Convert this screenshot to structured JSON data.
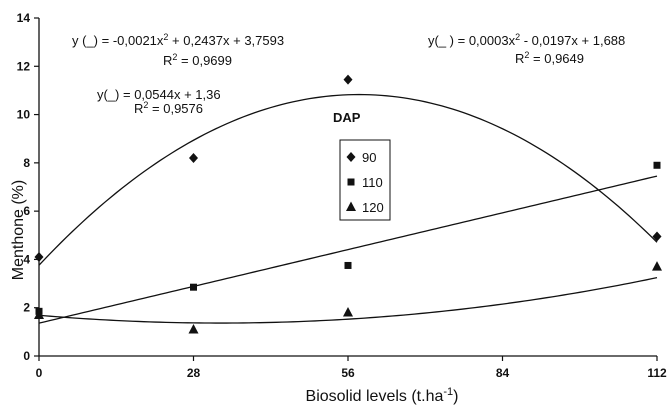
{
  "chart_data": {
    "type": "scatter",
    "title": "",
    "xlabel": "Biosolid levels (t.ha",
    "xlabel_sup": "-1",
    "xlabel_suffix": ")",
    "ylabel": "Menthone (%)",
    "xlim": [
      0,
      112
    ],
    "ylim": [
      0,
      14
    ],
    "xticks": [
      0,
      28,
      56,
      84,
      112
    ],
    "xtick_labels": [
      "0",
      "28",
      "56",
      "84",
      "112"
    ],
    "yticks": [
      0,
      2,
      4,
      6,
      8,
      10,
      12,
      14
    ],
    "ytick_labels": [
      "0",
      "2",
      "4",
      "6",
      "8",
      "10",
      "12",
      "14"
    ],
    "grid": false,
    "legend": {
      "title": "DAP",
      "position": "center"
    },
    "series": [
      {
        "name": "90",
        "marker": "diamond",
        "x": [
          0,
          28,
          56,
          112
        ],
        "y": [
          4.1,
          8.2,
          11.45,
          4.95
        ],
        "trend": {
          "type": "poly2",
          "a": -0.0021,
          "b": 0.2437,
          "c": 3.7593
        }
      },
      {
        "name": "110",
        "marker": "square",
        "x": [
          0,
          28,
          56,
          112
        ],
        "y": [
          1.85,
          2.85,
          3.75,
          7.9
        ],
        "trend": {
          "type": "linear",
          "a": 0,
          "b": 0.0544,
          "c": 1.36
        }
      },
      {
        "name": "120",
        "marker": "triangle",
        "x": [
          0,
          28,
          56,
          112
        ],
        "y": [
          1.7,
          1.1,
          1.8,
          3.7
        ],
        "trend": {
          "type": "poly2",
          "a": 0.0003,
          "b": -0.0197,
          "c": 1.688
        }
      }
    ],
    "annotations": {
      "eq_90_line1_pre": "y (_) = -0,0021x",
      "eq_90_line1_post": " + 0,2437x + 3,7593",
      "eq_90_line2": "R",
      "eq_90_line2_post": " = 0,9699",
      "eq_110_line1": "y(_) = 0,0544x + 1,36",
      "eq_110_line2": "R",
      "eq_110_line2_post": " = 0,9576",
      "eq_120_line1_pre": "y(_ ) = 0,0003x",
      "eq_120_line1_post": " - 0,0197x + 1,688",
      "eq_120_line2": "R",
      "eq_120_line2_post": " = 0,9649",
      "sup2": "2"
    }
  }
}
